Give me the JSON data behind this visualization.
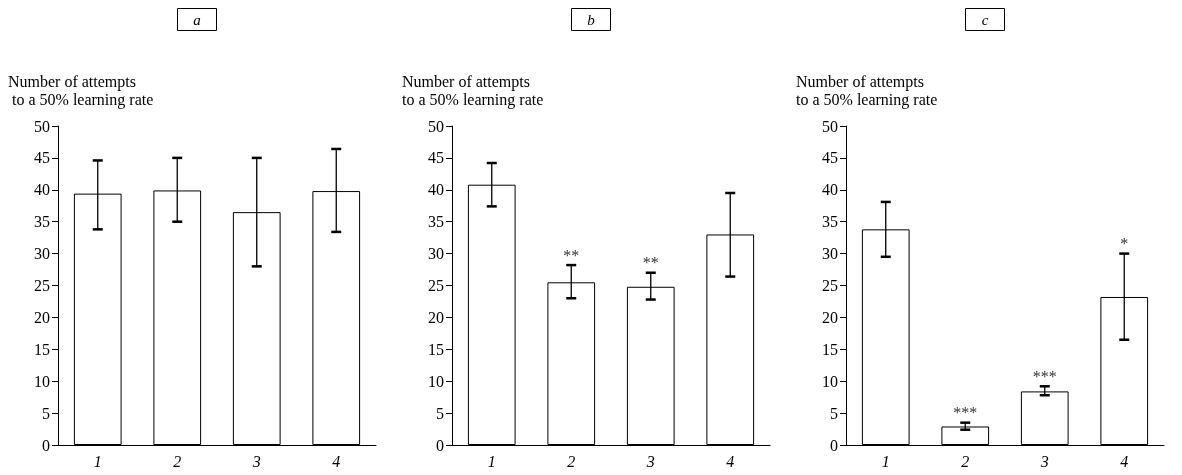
{
  "chart_data": [
    {
      "type": "bar",
      "title": "a",
      "ylabel": "Number of attempts\n to a 50% learning rate",
      "categories": [
        "1",
        "2",
        "3",
        "4"
      ],
      "values": [
        39.4,
        39.9,
        36.5,
        39.8
      ],
      "color": "#ffffff",
      "errors": [
        [
          33.8,
          44.6
        ],
        [
          35,
          45
        ],
        [
          28,
          45
        ],
        [
          33.4,
          46.4
        ]
      ],
      "ylim": [
        0,
        50
      ],
      "yticks": [
        0,
        5,
        10,
        15,
        20,
        25,
        30,
        35,
        40,
        45,
        50
      ],
      "grid": false
    },
    {
      "type": "bar",
      "title": "b",
      "ylabel": "Number of attempts\nto a 50% learning rate",
      "categories": [
        "1",
        "2",
        "3",
        "4"
      ],
      "values": [
        40.8,
        25.5,
        24.8,
        33
      ],
      "color": "#ffffff",
      "errors": [
        [
          37.4,
          44.2
        ],
        [
          23,
          28.2
        ],
        [
          22.8,
          27
        ],
        [
          26.4,
          39.5
        ]
      ],
      "annotations": [
        {
          "text": "**",
          "x": "2",
          "y": 28.2
        },
        {
          "text": "**",
          "x": "3",
          "y": 27
        }
      ],
      "ylim": [
        0,
        50
      ],
      "yticks": [
        0,
        5,
        10,
        15,
        20,
        25,
        30,
        35,
        40,
        45,
        50
      ],
      "grid": false
    },
    {
      "type": "bar",
      "title": "c",
      "ylabel": "Number of attempts\nto a 50% learning rate",
      "categories": [
        "1",
        "2",
        "3",
        "4"
      ],
      "values": [
        33.8,
        2.9,
        8.4,
        23.2
      ],
      "color": "#ffffff",
      "errors": [
        [
          29.5,
          38.1
        ],
        [
          2.4,
          3.5
        ],
        [
          7.8,
          9.2
        ],
        [
          16.5,
          30
        ]
      ],
      "annotations": [
        {
          "text": "***",
          "x": "2",
          "y": 3.5
        },
        {
          "text": "***",
          "x": "3",
          "y": 9.2
        },
        {
          "text": "*",
          "x": "4",
          "y": 30
        }
      ],
      "ylim": [
        0,
        50
      ],
      "yticks": [
        0,
        5,
        10,
        15,
        20,
        25,
        30,
        35,
        40,
        45,
        50
      ],
      "grid": false
    }
  ]
}
